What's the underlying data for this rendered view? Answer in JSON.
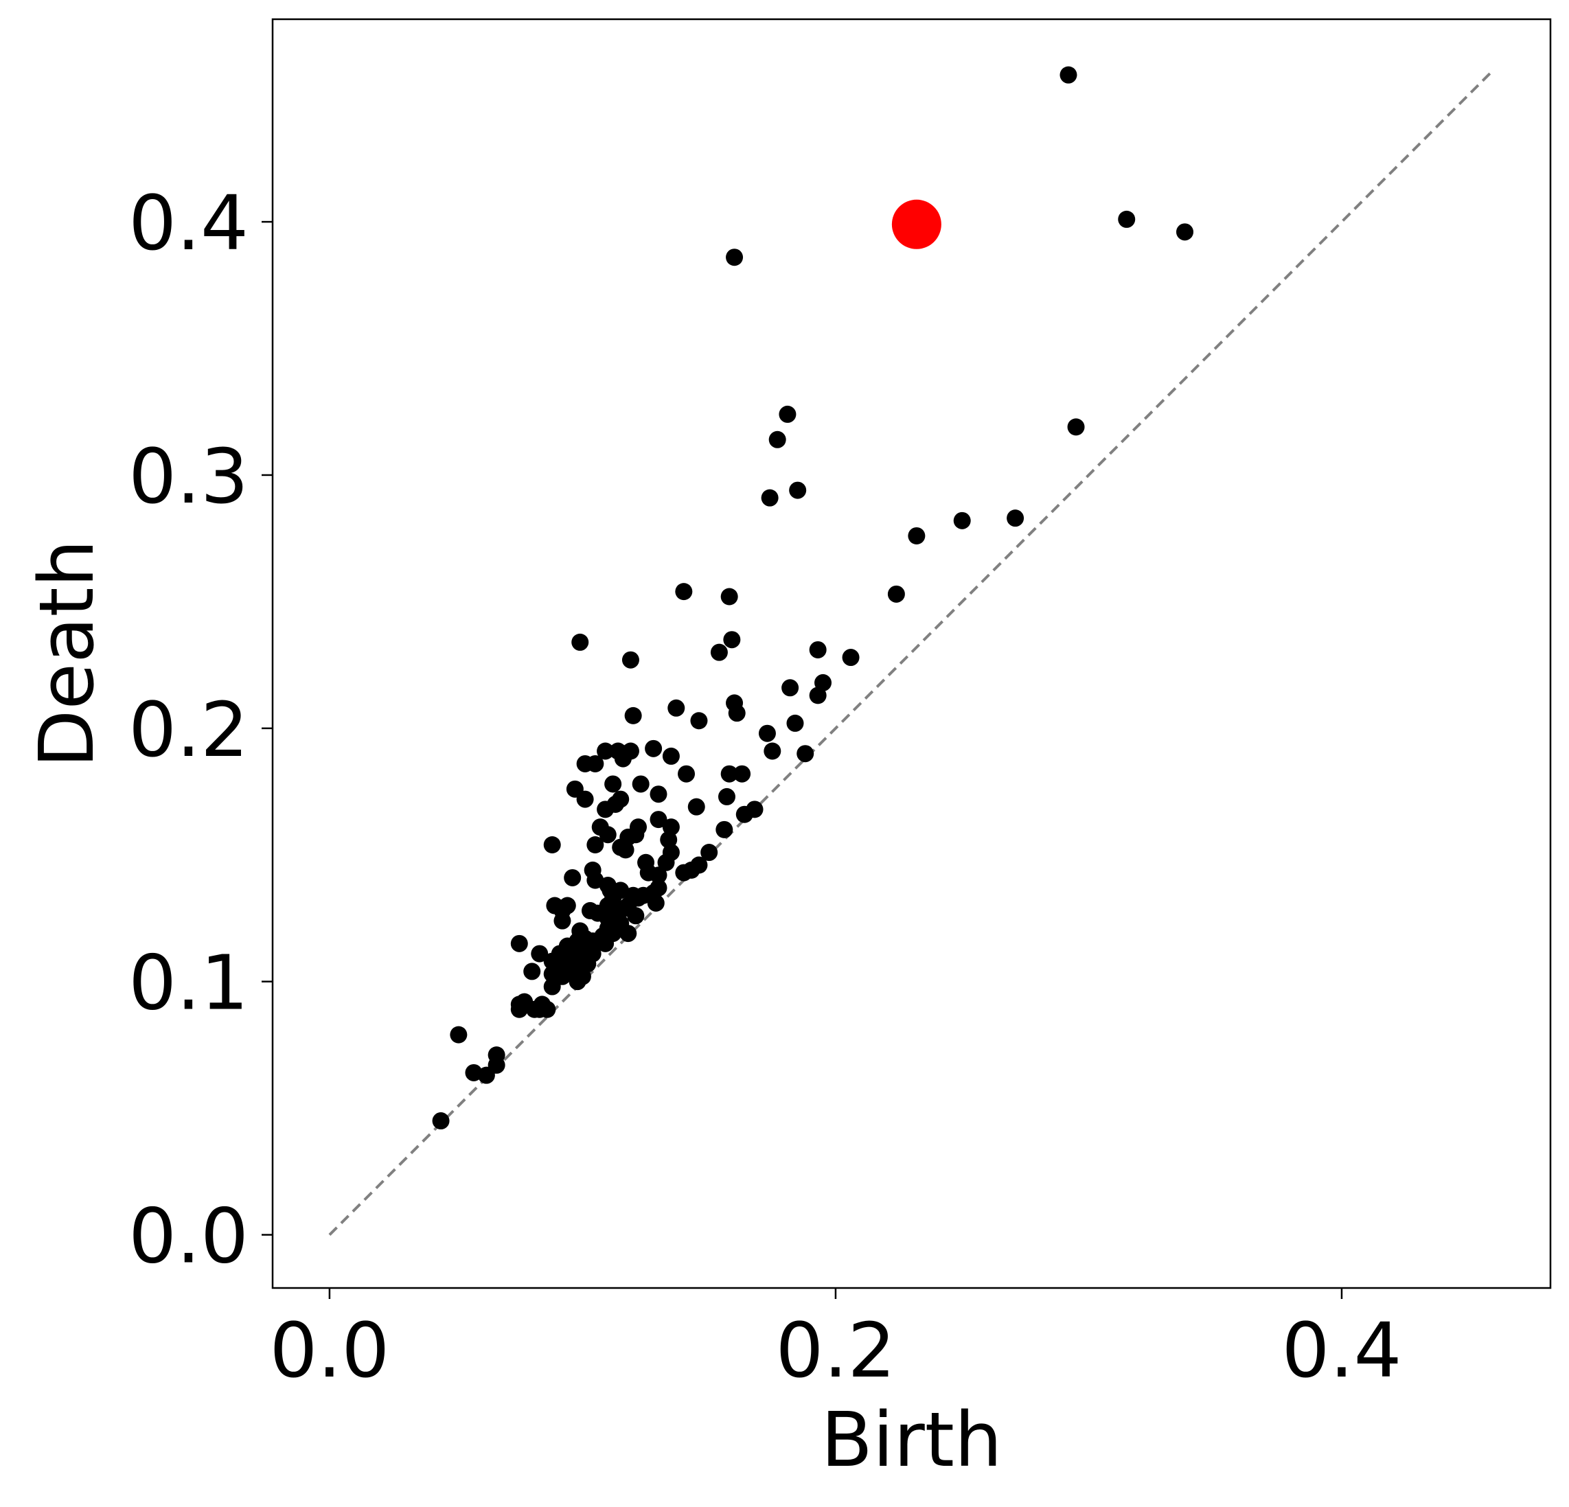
{
  "chart_data": {
    "type": "scatter",
    "title": "",
    "xlabel": "Birth",
    "ylabel": "Death",
    "xlim": [
      -0.0225,
      0.4825
    ],
    "ylim": [
      -0.021,
      0.48
    ],
    "xticks": [
      0.0,
      0.2,
      0.4
    ],
    "xtick_labels": [
      "0.0",
      "0.2",
      "0.4"
    ],
    "yticks": [
      0.0,
      0.1,
      0.2,
      0.3,
      0.4
    ],
    "ytick_labels": [
      "0.0",
      "0.1",
      "0.2",
      "0.3",
      "0.4"
    ],
    "grid": false,
    "diagonal": {
      "from": [
        0.0,
        0.0
      ],
      "to": [
        0.459,
        0.459
      ],
      "style": "dashed",
      "color": "#808080"
    },
    "colors": {
      "points": "#000000",
      "highlight": "#ff0000",
      "diagonal": "#808080"
    },
    "highlight_point": {
      "x": 0.232,
      "y": 0.399
    },
    "series": [
      {
        "points": [
          [
            0.292,
            0.458
          ],
          [
            0.315,
            0.401
          ],
          [
            0.338,
            0.396
          ],
          [
            0.16,
            0.386
          ],
          [
            0.181,
            0.324
          ],
          [
            0.177,
            0.314
          ],
          [
            0.295,
            0.319
          ],
          [
            0.185,
            0.294
          ],
          [
            0.174,
            0.291
          ],
          [
            0.25,
            0.282
          ],
          [
            0.271,
            0.283
          ],
          [
            0.232,
            0.276
          ],
          [
            0.224,
            0.253
          ],
          [
            0.14,
            0.254
          ],
          [
            0.158,
            0.252
          ],
          [
            0.099,
            0.234
          ],
          [
            0.159,
            0.235
          ],
          [
            0.154,
            0.23
          ],
          [
            0.119,
            0.227
          ],
          [
            0.193,
            0.231
          ],
          [
            0.206,
            0.228
          ],
          [
            0.182,
            0.216
          ],
          [
            0.195,
            0.218
          ],
          [
            0.193,
            0.213
          ],
          [
            0.16,
            0.21
          ],
          [
            0.161,
            0.206
          ],
          [
            0.137,
            0.208
          ],
          [
            0.12,
            0.205
          ],
          [
            0.146,
            0.203
          ],
          [
            0.184,
            0.202
          ],
          [
            0.173,
            0.198
          ],
          [
            0.175,
            0.191
          ],
          [
            0.188,
            0.19
          ],
          [
            0.128,
            0.192
          ],
          [
            0.135,
            0.189
          ],
          [
            0.109,
            0.191
          ],
          [
            0.114,
            0.191
          ],
          [
            0.119,
            0.191
          ],
          [
            0.116,
            0.188
          ],
          [
            0.105,
            0.186
          ],
          [
            0.101,
            0.186
          ],
          [
            0.141,
            0.182
          ],
          [
            0.158,
            0.182
          ],
          [
            0.163,
            0.182
          ],
          [
            0.123,
            0.178
          ],
          [
            0.112,
            0.178
          ],
          [
            0.097,
            0.176
          ],
          [
            0.13,
            0.174
          ],
          [
            0.157,
            0.173
          ],
          [
            0.101,
            0.172
          ],
          [
            0.115,
            0.172
          ],
          [
            0.113,
            0.17
          ],
          [
            0.109,
            0.168
          ],
          [
            0.145,
            0.169
          ],
          [
            0.164,
            0.166
          ],
          [
            0.168,
            0.168
          ],
          [
            0.13,
            0.164
          ],
          [
            0.135,
            0.161
          ],
          [
            0.122,
            0.161
          ],
          [
            0.107,
            0.161
          ],
          [
            0.11,
            0.158
          ],
          [
            0.121,
            0.158
          ],
          [
            0.118,
            0.157
          ],
          [
            0.156,
            0.16
          ],
          [
            0.088,
            0.154
          ],
          [
            0.105,
            0.154
          ],
          [
            0.117,
            0.152
          ],
          [
            0.115,
            0.153
          ],
          [
            0.134,
            0.156
          ],
          [
            0.15,
            0.151
          ],
          [
            0.135,
            0.151
          ],
          [
            0.133,
            0.147
          ],
          [
            0.125,
            0.147
          ],
          [
            0.146,
            0.146
          ],
          [
            0.14,
            0.143
          ],
          [
            0.143,
            0.144
          ],
          [
            0.126,
            0.143
          ],
          [
            0.13,
            0.142
          ],
          [
            0.104,
            0.144
          ],
          [
            0.096,
            0.141
          ],
          [
            0.105,
            0.14
          ],
          [
            0.11,
            0.138
          ],
          [
            0.111,
            0.136
          ],
          [
            0.13,
            0.137
          ],
          [
            0.115,
            0.136
          ],
          [
            0.128,
            0.135
          ],
          [
            0.12,
            0.134
          ],
          [
            0.112,
            0.133
          ],
          [
            0.122,
            0.133
          ],
          [
            0.124,
            0.134
          ],
          [
            0.129,
            0.131
          ],
          [
            0.118,
            0.13
          ],
          [
            0.11,
            0.13
          ],
          [
            0.117,
            0.129
          ],
          [
            0.089,
            0.13
          ],
          [
            0.094,
            0.13
          ],
          [
            0.092,
            0.128
          ],
          [
            0.103,
            0.128
          ],
          [
            0.106,
            0.127
          ],
          [
            0.113,
            0.127
          ],
          [
            0.121,
            0.126
          ],
          [
            0.11,
            0.125
          ],
          [
            0.115,
            0.123
          ],
          [
            0.113,
            0.122
          ],
          [
            0.092,
            0.124
          ],
          [
            0.11,
            0.121
          ],
          [
            0.099,
            0.12
          ],
          [
            0.112,
            0.119
          ],
          [
            0.118,
            0.119
          ],
          [
            0.108,
            0.118
          ],
          [
            0.101,
            0.117
          ],
          [
            0.098,
            0.116
          ],
          [
            0.104,
            0.116
          ],
          [
            0.075,
            0.115
          ],
          [
            0.109,
            0.115
          ],
          [
            0.094,
            0.114
          ],
          [
            0.098,
            0.113
          ],
          [
            0.101,
            0.113
          ],
          [
            0.083,
            0.111
          ],
          [
            0.091,
            0.111
          ],
          [
            0.104,
            0.111
          ],
          [
            0.1,
            0.11
          ],
          [
            0.095,
            0.109
          ],
          [
            0.088,
            0.108
          ],
          [
            0.09,
            0.107
          ],
          [
            0.102,
            0.107
          ],
          [
            0.097,
            0.106
          ],
          [
            0.094,
            0.105
          ],
          [
            0.099,
            0.105
          ],
          [
            0.08,
            0.104
          ],
          [
            0.088,
            0.103
          ],
          [
            0.092,
            0.102
          ],
          [
            0.1,
            0.102
          ],
          [
            0.098,
            0.1
          ],
          [
            0.088,
            0.098
          ],
          [
            0.077,
            0.092
          ],
          [
            0.075,
            0.091
          ],
          [
            0.084,
            0.091
          ],
          [
            0.083,
            0.089
          ],
          [
            0.075,
            0.089
          ],
          [
            0.081,
            0.089
          ],
          [
            0.086,
            0.089
          ],
          [
            0.051,
            0.079
          ],
          [
            0.066,
            0.071
          ],
          [
            0.066,
            0.067
          ],
          [
            0.057,
            0.064
          ],
          [
            0.062,
            0.063
          ],
          [
            0.044,
            0.045
          ]
        ]
      }
    ]
  }
}
